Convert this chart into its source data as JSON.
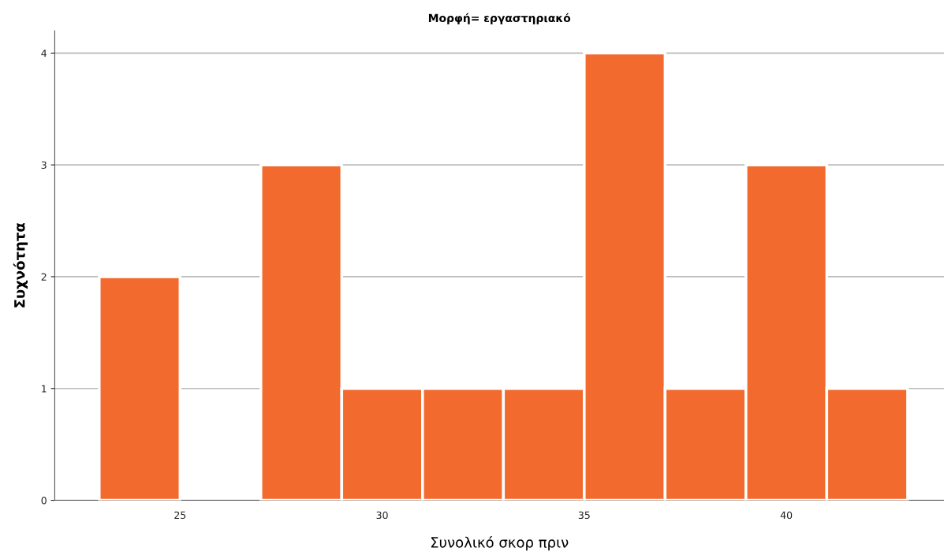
{
  "chart_data": {
    "type": "histogram",
    "title": "Μορφή= εργαστηριακό",
    "xlabel": "Συνολικό σκορ πριν",
    "ylabel": "Συχνότητα",
    "bins": [
      23,
      25,
      27,
      29,
      31,
      33,
      35,
      37,
      39,
      41,
      43
    ],
    "values": [
      2,
      0,
      3,
      1,
      1,
      1,
      4,
      1,
      3,
      1
    ],
    "color": "#f26a2e",
    "xlim": [
      21.9,
      43.9
    ],
    "xticks": [
      25,
      30,
      35,
      40
    ],
    "ylim": [
      0,
      4.2
    ],
    "yticks": [
      0,
      1,
      2,
      3,
      4
    ],
    "grid": "y"
  }
}
